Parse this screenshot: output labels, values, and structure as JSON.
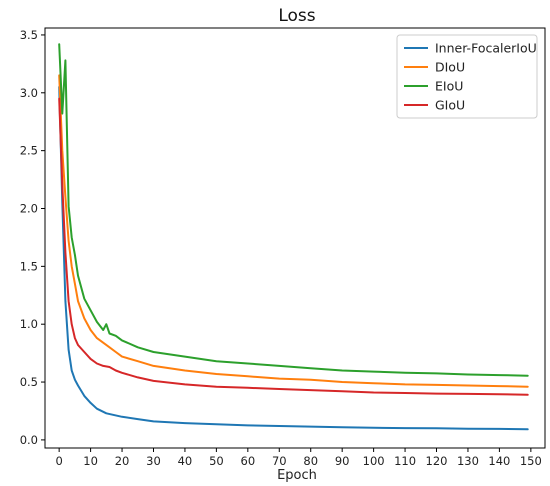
{
  "chart_data": {
    "type": "line",
    "title": "Loss",
    "xlabel": "Epoch",
    "ylabel": "",
    "xlim": [
      -4.5,
      154.5
    ],
    "ylim": [
      -0.07,
      3.56
    ],
    "xticks": [
      0,
      10,
      20,
      30,
      40,
      50,
      60,
      70,
      80,
      90,
      100,
      110,
      120,
      130,
      140,
      150
    ],
    "yticks": [
      0.0,
      0.5,
      1.0,
      1.5,
      2.0,
      2.5,
      3.0,
      3.5
    ],
    "grid": false,
    "legend_position": "top-right",
    "series": [
      {
        "name": "Inner-FocalerIoU",
        "color": "#1f77b4",
        "x": [
          0,
          1,
          2,
          3,
          4,
          5,
          6,
          8,
          10,
          12,
          15,
          20,
          25,
          30,
          40,
          50,
          60,
          70,
          80,
          90,
          100,
          110,
          120,
          130,
          140,
          149
        ],
        "y": [
          3.05,
          2.05,
          1.2,
          0.78,
          0.6,
          0.52,
          0.47,
          0.38,
          0.32,
          0.27,
          0.23,
          0.2,
          0.18,
          0.16,
          0.145,
          0.135,
          0.125,
          0.12,
          0.115,
          0.11,
          0.105,
          0.102,
          0.1,
          0.097,
          0.095,
          0.092
        ]
      },
      {
        "name": "DIoU",
        "color": "#ff7f0e",
        "x": [
          0,
          1,
          2,
          3,
          4,
          5,
          6,
          8,
          10,
          12,
          14,
          16,
          18,
          20,
          25,
          30,
          40,
          50,
          60,
          70,
          80,
          90,
          100,
          110,
          120,
          130,
          140,
          149
        ],
        "y": [
          3.15,
          2.5,
          2.1,
          1.72,
          1.5,
          1.35,
          1.2,
          1.05,
          0.95,
          0.88,
          0.84,
          0.8,
          0.76,
          0.72,
          0.68,
          0.64,
          0.6,
          0.57,
          0.55,
          0.53,
          0.52,
          0.5,
          0.49,
          0.48,
          0.475,
          0.47,
          0.465,
          0.46
        ]
      },
      {
        "name": "EIoU",
        "color": "#2ca02c",
        "x": [
          0,
          1,
          2,
          3,
          4,
          5,
          6,
          8,
          10,
          12,
          14,
          15,
          16,
          18,
          20,
          25,
          30,
          40,
          50,
          60,
          70,
          80,
          90,
          100,
          110,
          120,
          130,
          140,
          149
        ],
        "y": [
          3.42,
          2.82,
          3.28,
          2.02,
          1.75,
          1.6,
          1.42,
          1.22,
          1.12,
          1.02,
          0.95,
          1.0,
          0.92,
          0.9,
          0.86,
          0.8,
          0.76,
          0.72,
          0.68,
          0.66,
          0.64,
          0.62,
          0.6,
          0.59,
          0.58,
          0.575,
          0.565,
          0.56,
          0.555
        ]
      },
      {
        "name": "GIoU",
        "color": "#d62728",
        "x": [
          0,
          1,
          2,
          3,
          4,
          5,
          6,
          8,
          10,
          12,
          14,
          16,
          18,
          20,
          25,
          30,
          40,
          50,
          60,
          70,
          80,
          90,
          100,
          110,
          120,
          130,
          140,
          149
        ],
        "y": [
          2.95,
          2.2,
          1.62,
          1.2,
          1.0,
          0.88,
          0.82,
          0.76,
          0.7,
          0.66,
          0.64,
          0.63,
          0.6,
          0.58,
          0.54,
          0.51,
          0.48,
          0.46,
          0.45,
          0.44,
          0.43,
          0.42,
          0.41,
          0.405,
          0.4,
          0.398,
          0.395,
          0.39
        ]
      }
    ]
  }
}
